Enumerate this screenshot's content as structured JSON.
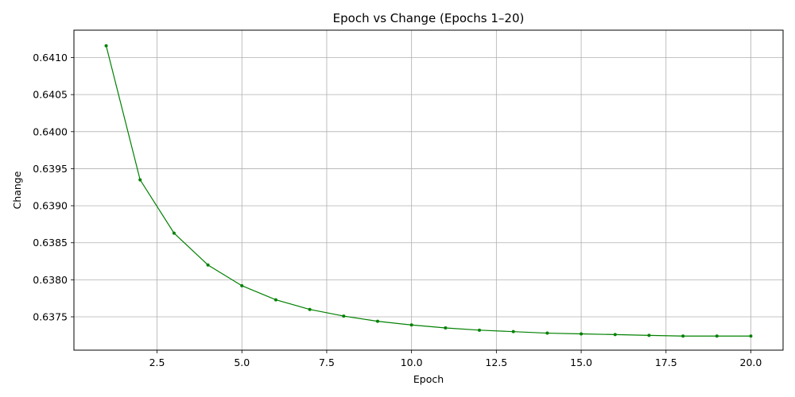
{
  "chart_data": {
    "type": "line",
    "title": "Epoch vs Change (Epochs 1–20)",
    "xlabel": "Epoch",
    "ylabel": "Change",
    "xlim": [
      0.05,
      20.95
    ],
    "ylim": [
      0.63705,
      0.64137
    ],
    "xticks": [
      2.5,
      5.0,
      7.5,
      10.0,
      12.5,
      15.0,
      17.5,
      20.0
    ],
    "xtick_labels": [
      "2.5",
      "5.0",
      "7.5",
      "10.0",
      "12.5",
      "15.0",
      "17.5",
      "20.0"
    ],
    "yticks": [
      0.6375,
      0.638,
      0.6385,
      0.639,
      0.6395,
      0.64,
      0.6405,
      0.641
    ],
    "ytick_labels": [
      "0.6375",
      "0.6380",
      "0.6385",
      "0.6390",
      "0.6395",
      "0.6400",
      "0.6405",
      "0.6410"
    ],
    "grid": true,
    "series": [
      {
        "color": "#008000",
        "marker": "circle",
        "x": [
          1,
          2,
          3,
          4,
          5,
          6,
          7,
          8,
          9,
          10,
          11,
          12,
          13,
          14,
          15,
          16,
          17,
          18,
          19,
          20
        ],
        "y": [
          0.64116,
          0.63935,
          0.63863,
          0.6382,
          0.63792,
          0.63773,
          0.6376,
          0.63751,
          0.63744,
          0.63739,
          0.63735,
          0.63732,
          0.6373,
          0.63728,
          0.63727,
          0.63726,
          0.63725,
          0.63724,
          0.63724,
          0.63724
        ]
      }
    ]
  }
}
